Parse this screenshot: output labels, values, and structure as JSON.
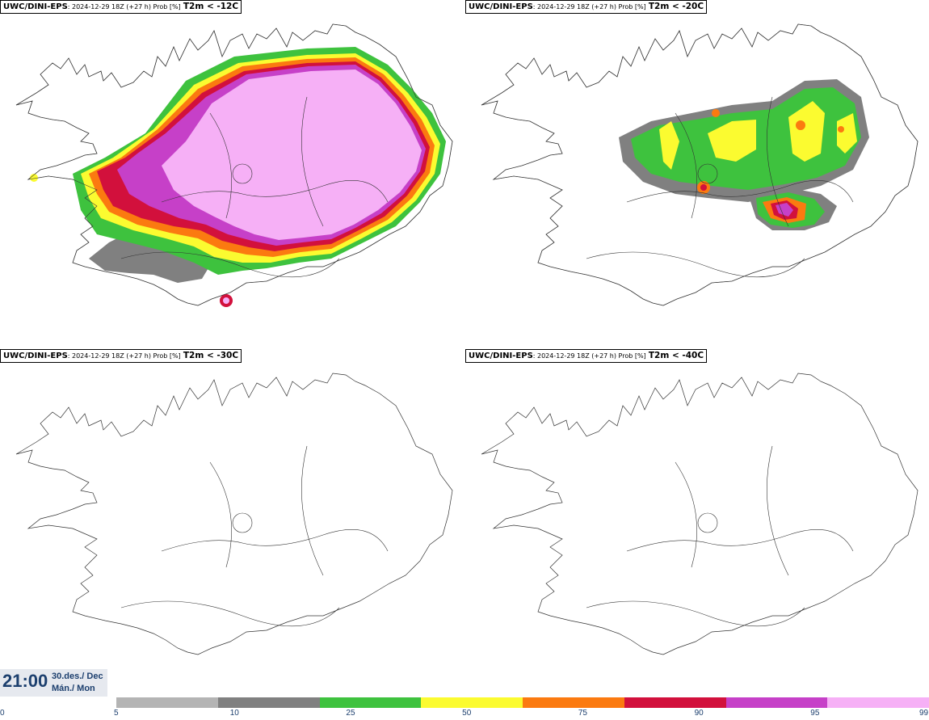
{
  "panels": [
    {
      "source": "UWC/DINI-EPS",
      "meta": ": 2024-12-29 18Z (+27 h) Prob [%]",
      "threshold": "T2m < -12C"
    },
    {
      "source": "UWC/DINI-EPS",
      "meta": ": 2024-12-29 18Z (+27 h) Prob [%]",
      "threshold": "T2m < -20C"
    },
    {
      "source": "UWC/DINI-EPS",
      "meta": ": 2024-12-29 18Z (+27 h) Prob [%]",
      "threshold": "T2m < -30C"
    },
    {
      "source": "UWC/DINI-EPS",
      "meta": ": 2024-12-29 18Z (+27 h) Prob [%]",
      "threshold": "T2m < -40C"
    }
  ],
  "valid_time": {
    "time": "21:00",
    "date_line1": "30.des./ Dec",
    "date_line2": "Mán./ Mon"
  },
  "colorbar": {
    "ticks": [
      "0",
      "5",
      "10",
      "25",
      "50",
      "75",
      "90",
      "95",
      "99"
    ],
    "colors": [
      "#b4b4b4",
      "#808080",
      "#3ec23e",
      "#fbfb30",
      "#fb7a10",
      "#d2103c",
      "#c640c8",
      "#f6b0f6"
    ]
  }
}
